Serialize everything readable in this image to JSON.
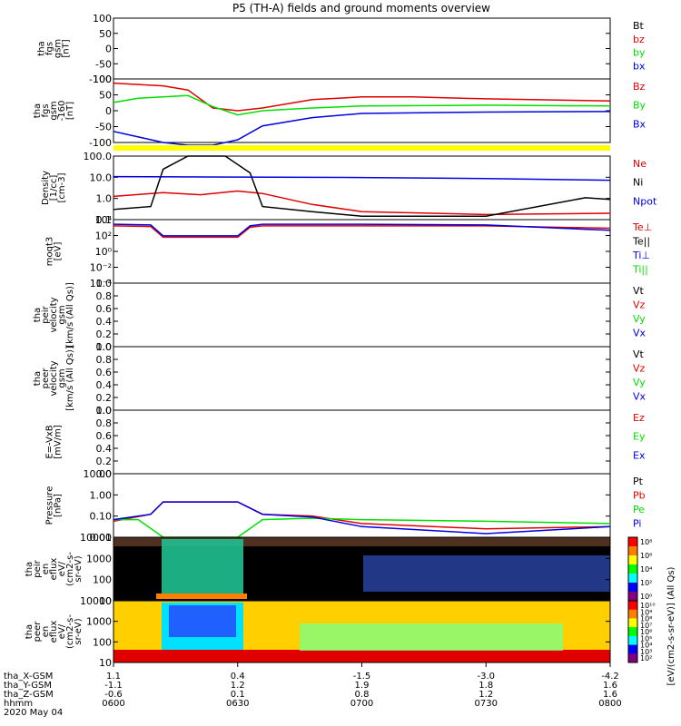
{
  "title": "P5 (TH-A) fields and ground moments overview",
  "colors": {
    "black": "#000000",
    "red": "#e00000",
    "green": "#00e000",
    "blue": "#0000e0",
    "yellow": "#ffff00"
  },
  "chart_data": {
    "type": "line",
    "x_axis": {
      "time_ticks": [
        "0600",
        "0630",
        "0700",
        "0730",
        "0800"
      ],
      "date": "2020 May 04",
      "time_range_hours": [
        6.0,
        8.0
      ],
      "ephemeris": [
        {
          "name": "tha_X-GSM",
          "values": [
            "1.1",
            "0.4",
            "-1.5",
            "-3.0",
            "-4.2"
          ]
        },
        {
          "name": "tha_Y-GSM",
          "values": [
            "-1.1",
            "1.2",
            "1.9",
            "1.8",
            "1.6"
          ]
        },
        {
          "name": "tha_Z-GSM",
          "values": [
            "-0.6",
            "0.1",
            "0.8",
            "1.2",
            "1.6"
          ]
        },
        {
          "name": "hhmm",
          "values": [
            "0600",
            "0630",
            "0700",
            "0730",
            "0800"
          ]
        }
      ]
    },
    "panels": [
      {
        "id": "fgs",
        "ylabel": [
          "tha",
          "fgs",
          "gsm",
          "[nT]"
        ],
        "ylim": [
          -100,
          100
        ],
        "yticks": [
          "100",
          "50",
          "0",
          "-50",
          "-100"
        ],
        "legend": [
          {
            "label": "Bt",
            "color": "black"
          },
          {
            "label": "bz",
            "color": "red"
          },
          {
            "label": "by",
            "color": "green"
          },
          {
            "label": "bx",
            "color": "blue"
          }
        ]
      },
      {
        "id": "fgs-160",
        "ylabel": [
          "tha",
          "fgs",
          "gsm",
          "-160",
          "[nT]"
        ],
        "ylim": [
          -120,
          110
        ],
        "yticks": [
          "100",
          "50",
          "0",
          "-50",
          "-100"
        ],
        "legend": [
          {
            "label": "Bz",
            "color": "red"
          },
          {
            "label": "By",
            "color": "green"
          },
          {
            "label": "Bx",
            "color": "blue"
          }
        ],
        "series": [
          {
            "name": "Bz",
            "color": "red",
            "x": [
              6.0,
              6.1,
              6.2,
              6.3,
              6.4,
              6.5,
              6.6,
              6.8,
              7.0,
              7.2,
              7.5,
              8.0
            ],
            "y": [
              95,
              90,
              85,
              70,
              5,
              -5,
              5,
              35,
              45,
              45,
              38,
              30
            ]
          },
          {
            "name": "By",
            "color": "green",
            "x": [
              6.0,
              6.1,
              6.2,
              6.3,
              6.4,
              6.5,
              6.6,
              6.8,
              7.0,
              7.5,
              8.0
            ],
            "y": [
              25,
              40,
              45,
              50,
              10,
              -20,
              -5,
              5,
              12,
              15,
              12
            ]
          },
          {
            "name": "Bx",
            "color": "blue",
            "x": [
              6.0,
              6.1,
              6.2,
              6.3,
              6.4,
              6.5,
              6.6,
              6.8,
              7.0,
              7.5,
              8.0
            ],
            "y": [
              -80,
              -100,
              -120,
              -130,
              -130,
              -110,
              -60,
              -30,
              -15,
              -10,
              -8
            ]
          }
        ]
      },
      {
        "id": "density",
        "ylabel": [
          "Density",
          "[1/cc]",
          "[cm-3]"
        ],
        "ylim": [
          0.05,
          300
        ],
        "log": true,
        "yticks": [
          "100.0",
          "10.0",
          "1.0",
          "0.1"
        ],
        "legend": [
          {
            "label": "Ne",
            "color": "red"
          },
          {
            "label": "Ni",
            "color": "black"
          },
          {
            "label": "Npot",
            "color": "blue"
          }
        ],
        "series": [
          {
            "name": "Ne",
            "color": "red",
            "x": [
              6.0,
              6.2,
              6.35,
              6.5,
              6.6,
              6.8,
              7.0,
              7.5,
              8.0
            ],
            "y": [
              1.2,
              2.0,
              1.5,
              2.5,
              1.8,
              0.4,
              0.15,
              0.1,
              0.12
            ]
          },
          {
            "name": "Ni",
            "color": "black",
            "x": [
              6.0,
              6.15,
              6.2,
              6.3,
              6.45,
              6.55,
              6.6,
              6.8,
              7.0,
              7.5,
              7.9,
              8.0
            ],
            "y": [
              0.2,
              0.3,
              50,
              300,
              300,
              30,
              0.3,
              0.15,
              0.08,
              0.08,
              1.0,
              0.8
            ]
          },
          {
            "name": "Npot",
            "color": "blue",
            "x": [
              6.0,
              6.5,
              7.0,
              7.5,
              8.0
            ],
            "y": [
              18,
              17,
              16,
              14,
              11
            ]
          }
        ]
      },
      {
        "id": "moqt3",
        "ylabel": [
          "moqt3",
          "[eV]"
        ],
        "ylim": [
          0.0001,
          20000
        ],
        "log": true,
        "yticks": [
          "10⁴",
          "10²",
          "10⁰",
          "10⁻²",
          "10⁻⁴"
        ],
        "legend": [
          {
            "label": "Te⊥",
            "color": "red"
          },
          {
            "label": "Te||",
            "color": "black"
          },
          {
            "label": "Ti⊥",
            "color": "blue"
          },
          {
            "label": "Ti||",
            "color": "green"
          }
        ],
        "series": [
          {
            "name": "Te⊥",
            "color": "red",
            "x": [
              6.0,
              6.15,
              6.2,
              6.5,
              6.55,
              6.6,
              7.0,
              7.5,
              8.0
            ],
            "y": [
              3000,
              2500,
              100,
              100,
              2000,
              3000,
              3000,
              3000,
              1500
            ]
          },
          {
            "name": "Ti⊥",
            "color": "blue",
            "x": [
              6.0,
              6.15,
              6.2,
              6.5,
              6.55,
              6.6,
              7.0,
              7.5,
              8.0
            ],
            "y": [
              5000,
              4000,
              150,
              150,
              3000,
              5000,
              5000,
              4000,
              800
            ]
          }
        ]
      },
      {
        "id": "peir-velocity",
        "ylabel": [
          "tha",
          "peir",
          "velocity",
          "gsm",
          "[km/s (All Qs)]"
        ],
        "ylim": [
          0,
          1
        ],
        "yticks": [
          "1.0",
          "0.8",
          "0.6",
          "0.4",
          "0.2",
          "0.0"
        ],
        "legend": [
          {
            "label": "Vt",
            "color": "black"
          },
          {
            "label": "Vz",
            "color": "red"
          },
          {
            "label": "Vy",
            "color": "green"
          },
          {
            "label": "Vx",
            "color": "blue"
          }
        ]
      },
      {
        "id": "peer-velocity",
        "ylabel": [
          "tha",
          "peer",
          "velocity",
          "gsm",
          "[km/s (All Qs)]"
        ],
        "ylim": [
          0,
          1
        ],
        "yticks": [
          "1.0",
          "0.8",
          "0.6",
          "0.4",
          "0.2",
          "0.0"
        ],
        "legend": [
          {
            "label": "Vt",
            "color": "black"
          },
          {
            "label": "Vz",
            "color": "red"
          },
          {
            "label": "Vy",
            "color": "green"
          },
          {
            "label": "Vx",
            "color": "blue"
          }
        ]
      },
      {
        "id": "efield",
        "ylabel": [
          "E=-VxB",
          "[mV/m]"
        ],
        "ylim": [
          0,
          1
        ],
        "yticks": [
          "1.0",
          "0.8",
          "0.6",
          "0.4",
          "0.2",
          "0.0"
        ],
        "legend": [
          {
            "label": "Ez",
            "color": "red"
          },
          {
            "label": "Ey",
            "color": "green"
          },
          {
            "label": "Ex",
            "color": "blue"
          }
        ]
      },
      {
        "id": "pressure",
        "ylabel": [
          "Pressure",
          "[nPa]"
        ],
        "ylim": [
          0.005,
          20
        ],
        "log": true,
        "yticks": [
          "10.00",
          "1.00",
          "0.10",
          "0.01"
        ],
        "legend": [
          {
            "label": "Pt",
            "color": "black"
          },
          {
            "label": "Pb",
            "color": "red"
          },
          {
            "label": "Pe",
            "color": "green"
          },
          {
            "label": "Pi",
            "color": "blue"
          }
        ],
        "series": [
          {
            "name": "Pb",
            "color": "red",
            "x": [
              6.0,
              6.15,
              6.2,
              6.5,
              6.6,
              6.8,
              7.0,
              7.5,
              8.0
            ],
            "y": [
              0.04,
              0.1,
              0.5,
              0.5,
              0.1,
              0.08,
              0.03,
              0.015,
              0.02
            ]
          },
          {
            "name": "Pe",
            "color": "green",
            "x": [
              6.0,
              6.1,
              6.2,
              6.3,
              6.5,
              6.6,
              6.8,
              7.0,
              7.5,
              8.0
            ],
            "y": [
              0.05,
              0.05,
              0.005,
              0.003,
              0.005,
              0.05,
              0.06,
              0.05,
              0.04,
              0.03
            ]
          },
          {
            "name": "Pi",
            "color": "blue",
            "x": [
              6.0,
              6.15,
              6.2,
              6.5,
              6.6,
              6.8,
              7.0,
              7.5,
              8.0
            ],
            "y": [
              0.05,
              0.1,
              0.5,
              0.5,
              0.1,
              0.07,
              0.02,
              0.008,
              0.02
            ]
          }
        ]
      },
      {
        "id": "peir-en-eflux",
        "ylabel": [
          "tha",
          "peir",
          "en",
          "eflux",
          "eV/",
          "(cm2-s-",
          "sr-eV)"
        ],
        "ylim": [
          5,
          20000
        ],
        "log": true,
        "yticks": [
          "10000",
          "1000",
          "100",
          "10"
        ],
        "spectrogram": true
      },
      {
        "id": "peer-en-eflux",
        "ylabel": [
          "tha",
          "peer",
          "en",
          "eflux",
          "eV/",
          "(cm2-s-",
          "sr-eV)"
        ],
        "ylim": [
          5,
          20000
        ],
        "log": true,
        "yticks": [
          "10000",
          "1000",
          "100",
          "10"
        ],
        "spectrogram": true
      }
    ],
    "colorbars": [
      {
        "label": "[eV/(cm2-s-sr-eV)] (All Qs)",
        "ticks": [
          "10⁸",
          "10⁶",
          "10⁴",
          "10²",
          "10⁰"
        ]
      },
      {
        "label": "[eV/(cm2-s-sr-eV)] (All Qs)",
        "ticks": [
          "10¹⁰",
          "10⁹",
          "10⁸",
          "10⁷",
          "10⁶",
          "10⁵",
          "10⁴",
          "10³",
          "10²"
        ]
      }
    ]
  }
}
